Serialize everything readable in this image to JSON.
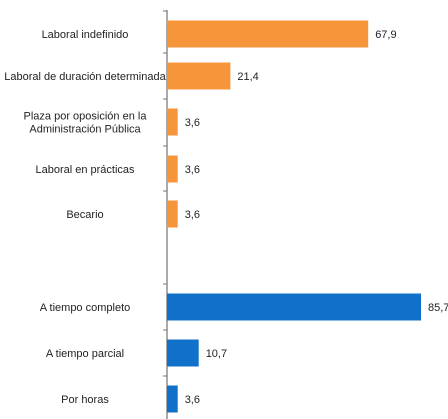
{
  "chart_data": {
    "type": "bar",
    "orientation": "horizontal",
    "xlim": [
      0,
      85.7
    ],
    "grid": false,
    "legend": "none",
    "title": "",
    "xlabel": "",
    "ylabel": "",
    "groups": [
      {
        "color": "#F7953B",
        "categories": [
          [
            "Laboral indefinido"
          ],
          [
            "Laboral de duración determinada"
          ],
          [
            "Plaza por oposición en la",
            "Administración Pública"
          ],
          [
            "Laboral en prácticas"
          ],
          [
            "Becario"
          ]
        ],
        "values": [
          67.9,
          21.4,
          3.6,
          3.6,
          3.6
        ],
        "value_labels": [
          "67,9",
          "21,4",
          "3,6",
          "3,6",
          "3,6"
        ]
      },
      {
        "color": "#1170C9",
        "categories": [
          [
            "A tiempo completo"
          ],
          [
            "A tiempo parcial"
          ],
          [
            "Por horas"
          ]
        ],
        "values": [
          85.7,
          10.7,
          3.6
        ],
        "value_labels": [
          "85,7",
          "10,7",
          "3,6"
        ]
      }
    ]
  }
}
